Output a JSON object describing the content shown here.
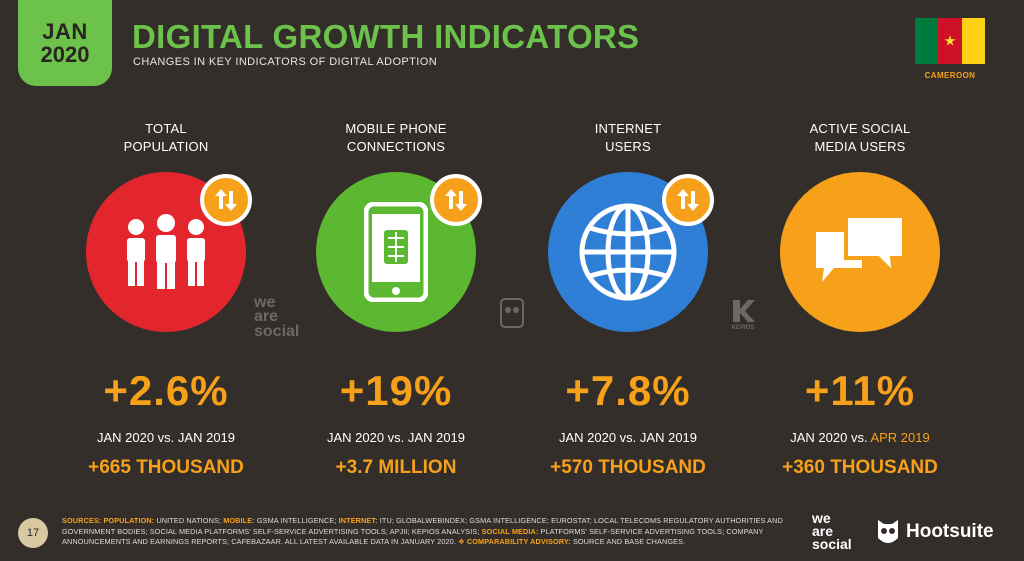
{
  "header": {
    "badge_month": "JAN",
    "badge_year": "2020",
    "title": "DIGITAL GROWTH INDICATORS",
    "subtitle": "CHANGES IN KEY INDICATORS OF DIGITAL ADOPTION"
  },
  "country": {
    "name": "CAMEROON",
    "flag_colors": [
      "#007a3d",
      "#ce1126",
      "#fcd116"
    ]
  },
  "indicators": [
    {
      "label_line1": "TOTAL",
      "label_line2": "POPULATION",
      "icon": "people-icon",
      "color": "#e3262d",
      "percent": "+2.6%",
      "comparison_a": "JAN 2020 vs. ",
      "comparison_b": "JAN 2019",
      "absolute": "+665 THOUSAND"
    },
    {
      "label_line1": "MOBILE PHONE",
      "label_line2": "CONNECTIONS",
      "icon": "mobile-phone-icon",
      "color": "#5cb731",
      "percent": "+19%",
      "comparison_a": "JAN 2020 vs. ",
      "comparison_b": "JAN 2019",
      "absolute": "+3.7 MILLION"
    },
    {
      "label_line1": "INTERNET",
      "label_line2": "USERS",
      "icon": "globe-icon",
      "color": "#2f7fd6",
      "percent": "+7.8%",
      "comparison_a": "JAN 2020 vs. ",
      "comparison_b": "JAN 2019",
      "absolute": "+570 THOUSAND"
    },
    {
      "label_line1": "ACTIVE SOCIAL",
      "label_line2": "MEDIA USERS",
      "icon": "chat-bubbles-icon",
      "color": "#f7a11a",
      "percent": "+11%",
      "comparison_a": "JAN 2020 vs. ",
      "comparison_b": "APR 2019",
      "absolute": "+360 THOUSAND"
    }
  ],
  "watermarks": {
    "we_are_social": [
      "we",
      "are",
      "social"
    ],
    "kepios": "KEPIOS"
  },
  "footer": {
    "page_number": "17",
    "sources_label": "SOURCES:",
    "population_label": "POPULATION:",
    "population_text": "UNITED NATIONS;",
    "mobile_label": "MOBILE:",
    "mobile_text": "GSMA INTELLIGENCE;",
    "internet_label": "INTERNET:",
    "internet_text": "ITU; GLOBALWEBINDEX; GSMA INTELLIGENCE; EUROSTAT; LOCAL TELECOMS REGULATORY AUTHORITIES AND GOVERNMENT BODIES; SOCIAL MEDIA PLATFORMS' SELF-SERVICE ADVERTISING TOOLS; APJII; KEPIOS ANALYSIS;",
    "social_label": "SOCIAL MEDIA:",
    "social_text": "PLATFORMS' SELF-SERVICE ADVERTISING TOOLS; COMPANY ANNOUNCEMENTS AND EARNINGS REPORTS; CAFEBAZAAR. ALL LATEST AVAILABLE DATA IN JANUARY 2020.",
    "advisory_label": "❖ COMPARABILITY ADVISORY:",
    "advisory_text": "SOURCE AND BASE CHANGES.",
    "brand_was": [
      "we",
      "are",
      "social"
    ],
    "brand_hootsuite": "Hootsuite"
  }
}
